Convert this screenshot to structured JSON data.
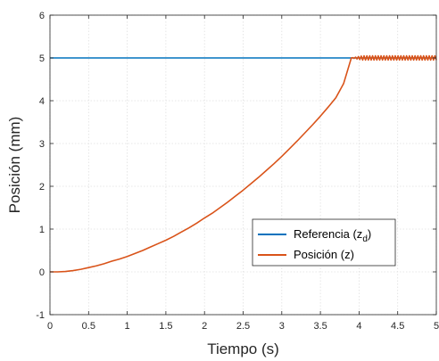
{
  "chart_data": {
    "type": "line",
    "title": "",
    "xlabel": "Tiempo (s)",
    "ylabel": "Posición (mm)",
    "xlim": [
      0,
      5
    ],
    "ylim": [
      -1,
      6
    ],
    "xticks": [
      "0",
      "0.5",
      "1",
      "1.5",
      "2",
      "2.5",
      "3",
      "3.5",
      "4",
      "4.5",
      "5"
    ],
    "yticks": [
      "-1",
      "0",
      "1",
      "2",
      "3",
      "4",
      "5",
      "6"
    ],
    "grid": true,
    "legend": {
      "placement": "inside-lower-right",
      "entries": [
        {
          "main": "Referencia (z",
          "sub": "d",
          "close": ")"
        },
        {
          "main": "Posición (z)",
          "sub": "",
          "close": ""
        }
      ]
    },
    "series": [
      {
        "name": "Referencia (zd)",
        "color": "#0072bd",
        "x": [
          0,
          5
        ],
        "y": [
          5,
          5
        ]
      },
      {
        "name": "Posición (z)",
        "color": "#d95319",
        "x": [
          0,
          0.1,
          0.2,
          0.3,
          0.4,
          0.5,
          0.6,
          0.7,
          0.8,
          0.9,
          1.0,
          1.1,
          1.2,
          1.3,
          1.4,
          1.5,
          1.6,
          1.7,
          1.8,
          1.9,
          2.0,
          2.1,
          2.2,
          2.3,
          2.4,
          2.5,
          2.6,
          2.7,
          2.8,
          2.9,
          3.0,
          3.1,
          3.2,
          3.3,
          3.4,
          3.5,
          3.6,
          3.7,
          3.8,
          3.9
        ],
        "y": [
          0,
          0,
          0.01,
          0.03,
          0.06,
          0.1,
          0.14,
          0.19,
          0.25,
          0.3,
          0.36,
          0.43,
          0.5,
          0.58,
          0.66,
          0.74,
          0.83,
          0.93,
          1.03,
          1.14,
          1.26,
          1.37,
          1.5,
          1.63,
          1.77,
          1.91,
          2.06,
          2.21,
          2.37,
          2.53,
          2.7,
          2.88,
          3.06,
          3.25,
          3.44,
          3.64,
          3.85,
          4.07,
          4.4,
          5.0
        ],
        "steady_state": {
          "x_start": 3.9,
          "x_end": 5,
          "value": 5,
          "oscillation": 0.05
        }
      }
    ]
  }
}
